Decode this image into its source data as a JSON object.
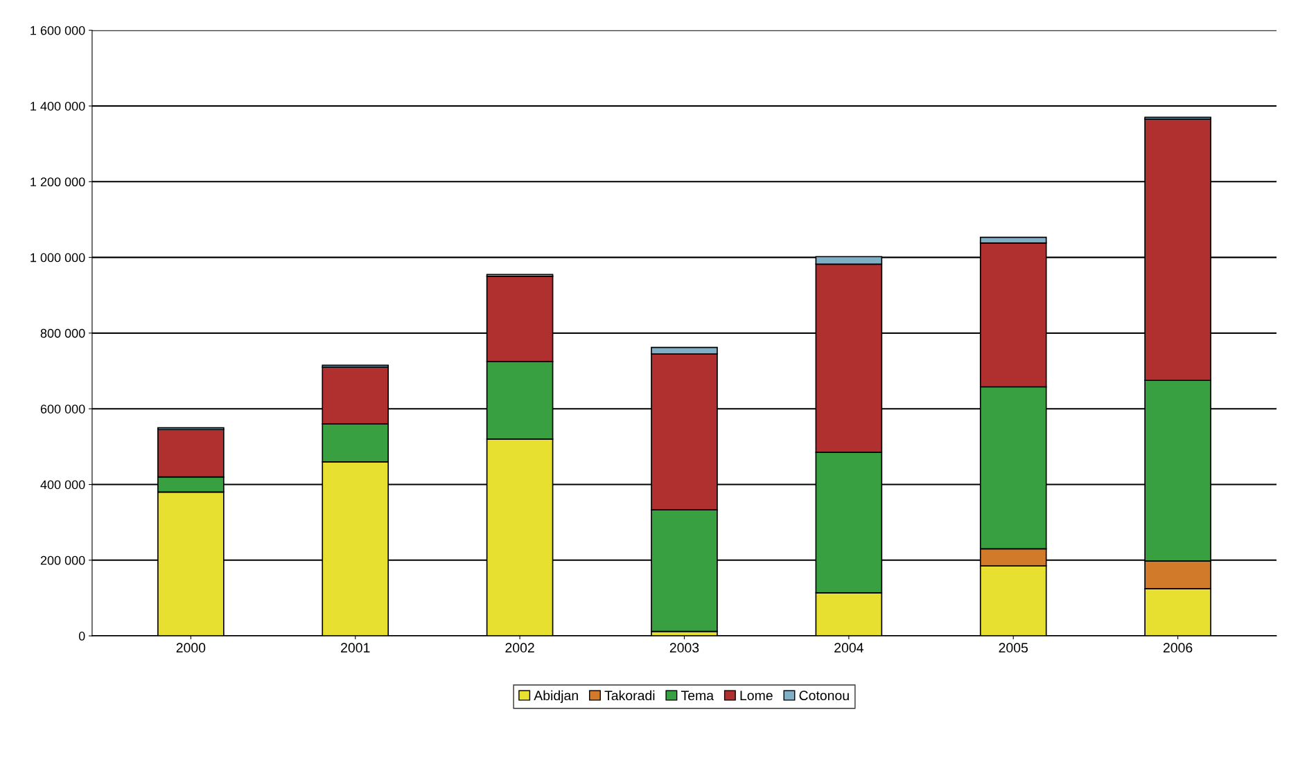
{
  "chart_data": {
    "type": "bar",
    "stacked": true,
    "categories": [
      "2000",
      "2001",
      "2002",
      "2003",
      "2004",
      "2005",
      "2006"
    ],
    "series": [
      {
        "name": "Abidjan",
        "color": "#e8e030",
        "values": [
          380000,
          460000,
          520000,
          12000,
          114000,
          185000,
          125000
        ]
      },
      {
        "name": "Takoradi",
        "color": "#d07a2a",
        "values": [
          0,
          0,
          0,
          0,
          0,
          45000,
          73000
        ]
      },
      {
        "name": "Tema",
        "color": "#38a040",
        "values": [
          40000,
          100000,
          205000,
          321000,
          371000,
          428000,
          477000
        ]
      },
      {
        "name": "Lome",
        "color": "#b03030",
        "values": [
          125000,
          150000,
          225000,
          412000,
          497000,
          380000,
          690000
        ]
      },
      {
        "name": "Cotonou",
        "color": "#7fb0c8",
        "values": [
          5000,
          5000,
          5000,
          17000,
          20000,
          15000,
          5000
        ]
      }
    ],
    "ylim": [
      0,
      1600000
    ],
    "yticks": [
      {
        "value": 0,
        "label": "0"
      },
      {
        "value": 200000,
        "label": "200 000"
      },
      {
        "value": 400000,
        "label": "400 000"
      },
      {
        "value": 600000,
        "label": "600 000"
      },
      {
        "value": 800000,
        "label": "800 000"
      },
      {
        "value": 1000000,
        "label": "1 000 000"
      },
      {
        "value": 1200000,
        "label": "1 200 000"
      },
      {
        "value": 1400000,
        "label": "1 400 000"
      },
      {
        "value": 1600000,
        "label": "1 600 000"
      }
    ],
    "grid": "y",
    "legend": "bottom"
  }
}
